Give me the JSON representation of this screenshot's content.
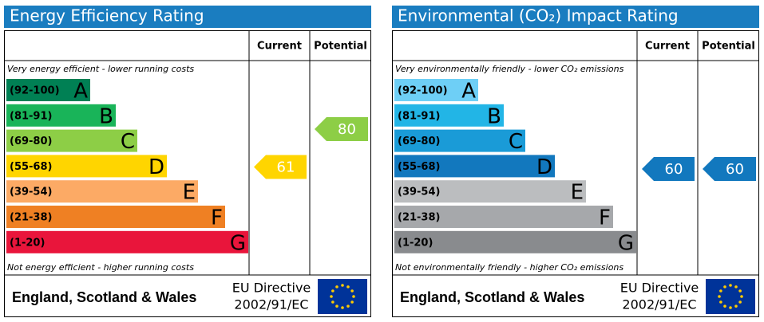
{
  "chart_data": [
    {
      "type": "rating",
      "title": "Energy Efficiency Rating",
      "columns": [
        "Current",
        "Potential"
      ],
      "top_note": "Very energy efficient - lower running costs",
      "bottom_note": "Not energy efficient - higher running costs",
      "bands": [
        {
          "range": "(92-100)",
          "letter": "A",
          "color": "#008054"
        },
        {
          "range": "(81-91)",
          "letter": "B",
          "color": "#19b459"
        },
        {
          "range": "(69-80)",
          "letter": "C",
          "color": "#8dce46"
        },
        {
          "range": "(55-68)",
          "letter": "D",
          "color": "#ffd500"
        },
        {
          "range": "(39-54)",
          "letter": "E",
          "color": "#fcaa65"
        },
        {
          "range": "(21-38)",
          "letter": "F",
          "color": "#ef8023"
        },
        {
          "range": "(1-20)",
          "letter": "G",
          "color": "#e9153b"
        }
      ],
      "current": 61,
      "potential": 80,
      "footer": "England, Scotland & Wales",
      "directive": [
        "EU Directive",
        "2002/91/EC"
      ]
    },
    {
      "type": "rating",
      "title": "Environmental (CO₂) Impact Rating",
      "columns": [
        "Current",
        "Potential"
      ],
      "top_note": "Very environmentally friendly - lower CO₂ emissions",
      "bottom_note": "Not environmentally friendly - higher CO₂ emissions",
      "bands": [
        {
          "range": "(92-100)",
          "letter": "A",
          "color": "#6ecff6"
        },
        {
          "range": "(81-91)",
          "letter": "B",
          "color": "#22b5e6"
        },
        {
          "range": "(69-80)",
          "letter": "C",
          "color": "#1a9bd7"
        },
        {
          "range": "(55-68)",
          "letter": "D",
          "color": "#1278be"
        },
        {
          "range": "(39-54)",
          "letter": "E",
          "color": "#bbbdbf"
        },
        {
          "range": "(21-38)",
          "letter": "F",
          "color": "#a6a8ab"
        },
        {
          "range": "(1-20)",
          "letter": "G",
          "color": "#898b8e"
        }
      ],
      "current": 60,
      "potential": 60,
      "footer": "England, Scotland & Wales",
      "directive": [
        "EU Directive",
        "2002/91/EC"
      ]
    }
  ]
}
